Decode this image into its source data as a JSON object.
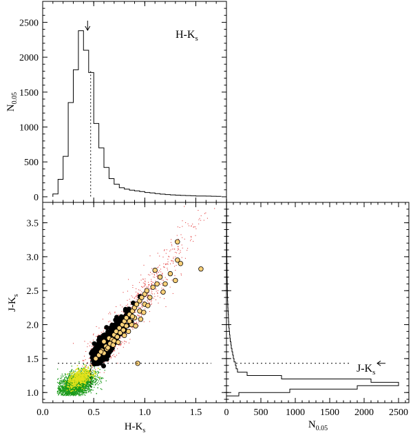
{
  "chart_data": [
    {
      "panel": "top-histogram",
      "type": "histogram",
      "annotation": "H-K",
      "annotation_sub": "s",
      "ylabel": "N",
      "ylabel_sub": "0.05",
      "xlim": [
        0.0,
        1.8
      ],
      "ylim": [
        -80,
        2800
      ],
      "yticks": [
        0,
        500,
        1000,
        1500,
        2000,
        2500
      ],
      "bin_width": 0.05,
      "bin_start": 0.1,
      "counts": [
        40,
        250,
        580,
        1350,
        1820,
        2380,
        2100,
        1780,
        1050,
        700,
        420,
        260,
        180,
        130,
        110,
        95,
        85,
        75,
        62,
        55,
        45,
        38,
        32,
        28,
        24,
        20,
        18,
        15,
        12,
        12,
        10,
        8,
        7
      ],
      "cut_line_x": 0.47,
      "arrow_x": 0.44
    },
    {
      "panel": "scatter",
      "type": "scatter",
      "xlabel": "H-K",
      "xlabel_sub": "s",
      "ylabel": "J-K",
      "ylabel_sub": "s",
      "xlim": [
        0.0,
        1.8
      ],
      "ylim": [
        3.8,
        0.85
      ],
      "xticks": [
        0.0,
        0.5,
        1.0,
        1.5
      ],
      "yticks": [
        1.0,
        1.5,
        2.0,
        2.5,
        3.0,
        3.5
      ],
      "cut_h": 0.47,
      "cut_j": 1.43,
      "marked_points": [
        [
          0.93,
          1.43
        ],
        [
          0.55,
          1.55
        ],
        [
          0.58,
          1.62
        ],
        [
          0.62,
          1.68
        ],
        [
          0.6,
          1.75
        ],
        [
          0.65,
          1.8
        ],
        [
          0.7,
          1.85
        ],
        [
          0.72,
          1.9
        ],
        [
          0.68,
          1.78
        ],
        [
          0.75,
          1.95
        ],
        [
          0.78,
          2.0
        ],
        [
          0.8,
          2.05
        ],
        [
          0.82,
          2.1
        ],
        [
          0.85,
          2.15
        ],
        [
          0.88,
          2.2
        ],
        [
          0.9,
          2.25
        ],
        [
          0.92,
          2.3
        ],
        [
          0.95,
          2.35
        ],
        [
          0.97,
          2.4
        ],
        [
          1.0,
          2.45
        ],
        [
          0.9,
          2.1
        ],
        [
          0.87,
          2.0
        ],
        [
          0.95,
          2.2
        ],
        [
          1.0,
          2.3
        ],
        [
          1.05,
          2.4
        ],
        [
          1.02,
          2.5
        ],
        [
          1.08,
          2.55
        ],
        [
          1.12,
          2.6
        ],
        [
          1.15,
          2.7
        ],
        [
          1.1,
          2.8
        ],
        [
          1.25,
          2.75
        ],
        [
          1.3,
          2.65
        ],
        [
          1.32,
          2.95
        ],
        [
          1.35,
          2.9
        ],
        [
          1.55,
          2.82
        ],
        [
          1.32,
          3.22
        ],
        [
          0.6,
          1.58
        ],
        [
          0.63,
          1.64
        ],
        [
          0.66,
          1.72
        ],
        [
          0.7,
          1.76
        ],
        [
          0.73,
          1.82
        ],
        [
          0.76,
          1.88
        ],
        [
          0.79,
          1.92
        ],
        [
          0.82,
          1.98
        ],
        [
          0.85,
          2.05
        ],
        [
          0.88,
          2.12
        ],
        [
          0.52,
          1.5
        ],
        [
          0.57,
          1.6
        ],
        [
          0.64,
          1.66
        ],
        [
          0.69,
          1.7
        ],
        [
          0.74,
          1.74
        ],
        [
          0.8,
          1.84
        ],
        [
          0.84,
          1.9
        ],
        [
          0.91,
          1.98
        ],
        [
          0.96,
          2.08
        ],
        [
          0.99,
          2.18
        ],
        [
          1.03,
          2.28
        ],
        [
          1.18,
          2.48
        ],
        [
          1.2,
          2.6
        ]
      ]
    },
    {
      "panel": "right-histogram",
      "type": "histogram",
      "orientation": "horizontal",
      "annotation": "J-K",
      "annotation_sub": "s",
      "xlabel": "N",
      "xlabel_sub": "0.05",
      "xlim": [
        0,
        2650
      ],
      "ylim": [
        3.8,
        0.85
      ],
      "xticks": [
        0,
        500,
        1000,
        1500,
        2000,
        2500
      ],
      "bin_width": 0.05,
      "bin_start": 0.95,
      "counts": [
        180,
        920,
        1900,
        2500,
        2100,
        800,
        300,
        160,
        140,
        130,
        110,
        100,
        90,
        80,
        70,
        65,
        55,
        50,
        45,
        40,
        35,
        32,
        30,
        28,
        25,
        22,
        20,
        18,
        16,
        15,
        14,
        13,
        12,
        11,
        10,
        9,
        8,
        8,
        7,
        7,
        6,
        6,
        5,
        5,
        5,
        4,
        4,
        4,
        4,
        3,
        3,
        3,
        3,
        3,
        3,
        2,
        2,
        2
      ],
      "cut_line_y": 1.43,
      "arrow_y": 1.43
    }
  ],
  "colors": {
    "axis": "#000000",
    "histogram_line": "#000000",
    "background_points": "#1a9a1a",
    "dense_points": "#e2e21a",
    "red_points": "#e02020",
    "marked_fill": "#ffd27a",
    "marked_core": "#000000"
  }
}
